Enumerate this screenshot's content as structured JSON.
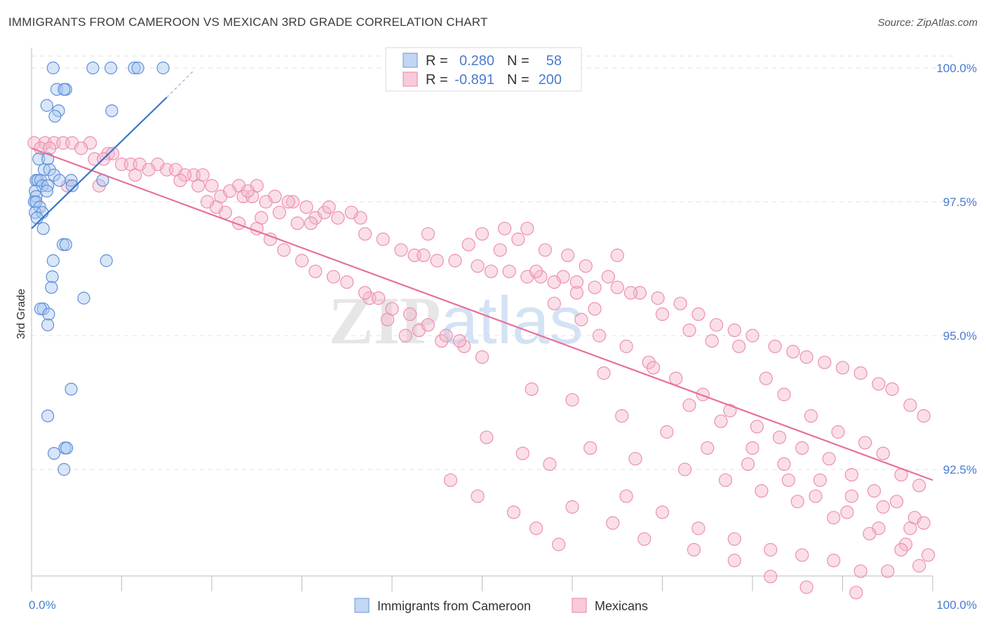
{
  "header": {
    "title": "IMMIGRANTS FROM CAMEROON VS MEXICAN 3RD GRADE CORRELATION CHART",
    "source": "Source: ZipAtlas.com"
  },
  "watermark": "ZIPatlas",
  "colors": {
    "blue": "#4a7bd0",
    "blue_fill": "#a9c7f0",
    "pink": "#e8709a",
    "pink_fill": "#f5b8cc",
    "grid": "#dddddd"
  },
  "chart_data": {
    "type": "scatter",
    "title": "IMMIGRANTS FROM CAMEROON VS MEXICAN 3RD GRADE CORRELATION CHART",
    "xlabel": "",
    "ylabel": "3rd Grade",
    "xlim": [
      0,
      100
    ],
    "ylim": [
      90.0,
      100.4
    ],
    "y_ticks": [
      {
        "value": 100.0,
        "label": "100.0%"
      },
      {
        "value": 97.5,
        "label": "97.5%"
      },
      {
        "value": 95.0,
        "label": "95.0%"
      },
      {
        "value": 92.5,
        "label": "92.5%"
      }
    ],
    "x_tick_labels": [
      {
        "value": 0,
        "label": "0.0%"
      },
      {
        "value": 100,
        "label": "100.0%"
      }
    ],
    "grid": true,
    "legend_position": "top-center",
    "stats": [
      {
        "r_label": "R =",
        "r": "0.280",
        "n_label": "N =",
        "n": "58"
      },
      {
        "r_label": "R =",
        "r": "-0.891",
        "n_label": "N =",
        "n": "200"
      }
    ],
    "series": [
      {
        "name": "Immigrants from Cameroon",
        "color": "#4a7bd0",
        "trend": {
          "x": [
            0,
            15
          ],
          "y": [
            97.0,
            99.45
          ]
        },
        "trend_extension": {
          "x": [
            15,
            18
          ],
          "y": [
            99.45,
            99.95
          ]
        },
        "points": [
          [
            2.4,
            100
          ],
          [
            6.8,
            100
          ],
          [
            8.8,
            100
          ],
          [
            11.4,
            100
          ],
          [
            11.8,
            100
          ],
          [
            14.6,
            100
          ],
          [
            2.8,
            99.6
          ],
          [
            3.8,
            99.6
          ],
          [
            3.6,
            99.6
          ],
          [
            8.9,
            99.2
          ],
          [
            1.7,
            99.3
          ],
          [
            3.0,
            99.2
          ],
          [
            2.6,
            99.1
          ],
          [
            0.8,
            98.3
          ],
          [
            1.8,
            98.3
          ],
          [
            1.4,
            98.1
          ],
          [
            2.0,
            98.1
          ],
          [
            2.5,
            98.0
          ],
          [
            0.5,
            97.9
          ],
          [
            0.7,
            97.9
          ],
          [
            1.0,
            97.9
          ],
          [
            3.1,
            97.9
          ],
          [
            4.4,
            97.9
          ],
          [
            7.9,
            97.9
          ],
          [
            1.2,
            97.8
          ],
          [
            1.8,
            97.8
          ],
          [
            4.5,
            97.8
          ],
          [
            0.4,
            97.7
          ],
          [
            0.5,
            97.6
          ],
          [
            1.7,
            97.7
          ],
          [
            0.3,
            97.5
          ],
          [
            0.5,
            97.5
          ],
          [
            0.9,
            97.4
          ],
          [
            0.4,
            97.3
          ],
          [
            1.2,
            97.3
          ],
          [
            0.6,
            97.2
          ],
          [
            1.3,
            97.0
          ],
          [
            3.5,
            96.7
          ],
          [
            3.8,
            96.7
          ],
          [
            8.3,
            96.4
          ],
          [
            2.4,
            96.4
          ],
          [
            2.3,
            96.1
          ],
          [
            2.2,
            95.9
          ],
          [
            5.8,
            95.7
          ],
          [
            1.3,
            95.5
          ],
          [
            1.0,
            95.5
          ],
          [
            1.9,
            95.4
          ],
          [
            1.8,
            95.2
          ],
          [
            4.4,
            94.0
          ],
          [
            1.8,
            93.5
          ],
          [
            3.7,
            92.9
          ],
          [
            3.9,
            92.9
          ],
          [
            2.5,
            92.8
          ],
          [
            3.6,
            92.5
          ]
        ]
      },
      {
        "name": "Mexicans",
        "color": "#e8709a",
        "trend": {
          "x": [
            0,
            100
          ],
          "y": [
            98.5,
            92.3
          ]
        },
        "points": [
          [
            0.3,
            98.6
          ],
          [
            1.5,
            98.6
          ],
          [
            2.5,
            98.6
          ],
          [
            3.5,
            98.6
          ],
          [
            4.5,
            98.6
          ],
          [
            6.5,
            98.6
          ],
          [
            1.0,
            98.5
          ],
          [
            2.0,
            98.5
          ],
          [
            5.5,
            98.5
          ],
          [
            8.5,
            98.4
          ],
          [
            9.0,
            98.4
          ],
          [
            7.0,
            98.3
          ],
          [
            8.0,
            98.3
          ],
          [
            10.0,
            98.2
          ],
          [
            11.0,
            98.2
          ],
          [
            12.0,
            98.2
          ],
          [
            14.0,
            98.2
          ],
          [
            15.0,
            98.1
          ],
          [
            13.0,
            98.1
          ],
          [
            16.0,
            98.1
          ],
          [
            18.0,
            98.0
          ],
          [
            17.0,
            98.0
          ],
          [
            19.0,
            98.0
          ],
          [
            11.5,
            98.0
          ],
          [
            4.0,
            97.8
          ],
          [
            7.5,
            97.8
          ],
          [
            16.5,
            97.9
          ],
          [
            18.5,
            97.8
          ],
          [
            20.0,
            97.8
          ],
          [
            21.0,
            97.6
          ],
          [
            23.0,
            97.8
          ],
          [
            25.0,
            97.8
          ],
          [
            22.0,
            97.7
          ],
          [
            23.5,
            97.6
          ],
          [
            24.5,
            97.6
          ],
          [
            27.0,
            97.6
          ],
          [
            29.0,
            97.5
          ],
          [
            30.5,
            97.4
          ],
          [
            31.5,
            97.2
          ],
          [
            32.5,
            97.3
          ],
          [
            34.0,
            97.2
          ],
          [
            36.5,
            97.2
          ],
          [
            25.5,
            97.2
          ],
          [
            28.5,
            97.5
          ],
          [
            24.0,
            97.7
          ],
          [
            26.0,
            97.5
          ],
          [
            27.5,
            97.3
          ],
          [
            29.5,
            97.1
          ],
          [
            31.0,
            97.1
          ],
          [
            33.0,
            97.4
          ],
          [
            35.5,
            97.3
          ],
          [
            37.0,
            96.9
          ],
          [
            39.0,
            96.8
          ],
          [
            41.0,
            96.6
          ],
          [
            42.5,
            96.5
          ],
          [
            43.5,
            96.5
          ],
          [
            45.0,
            96.4
          ],
          [
            47.0,
            96.4
          ],
          [
            49.5,
            96.3
          ],
          [
            51.0,
            96.2
          ],
          [
            53.0,
            96.2
          ],
          [
            55.0,
            96.1
          ],
          [
            56.5,
            96.1
          ],
          [
            59.0,
            96.1
          ],
          [
            60.5,
            96.0
          ],
          [
            62.5,
            95.9
          ],
          [
            65.0,
            95.9
          ],
          [
            67.5,
            95.8
          ],
          [
            69.5,
            95.7
          ],
          [
            72.0,
            95.6
          ],
          [
            74.0,
            95.4
          ],
          [
            76.0,
            95.2
          ],
          [
            78.0,
            95.1
          ],
          [
            80.0,
            95.0
          ],
          [
            82.5,
            94.8
          ],
          [
            84.5,
            94.7
          ],
          [
            86.0,
            94.6
          ],
          [
            88.0,
            94.5
          ],
          [
            90.0,
            94.4
          ],
          [
            92.0,
            94.3
          ],
          [
            94.0,
            94.1
          ],
          [
            95.5,
            94.0
          ],
          [
            97.5,
            93.7
          ],
          [
            99.0,
            93.5
          ],
          [
            52.5,
            97.0
          ],
          [
            54.0,
            96.8
          ],
          [
            57.0,
            96.6
          ],
          [
            59.5,
            96.5
          ],
          [
            61.5,
            96.3
          ],
          [
            64.0,
            96.1
          ],
          [
            66.5,
            95.8
          ],
          [
            70.0,
            95.4
          ],
          [
            73.0,
            95.1
          ],
          [
            75.5,
            94.9
          ],
          [
            78.5,
            94.8
          ],
          [
            81.5,
            94.2
          ],
          [
            83.5,
            93.9
          ],
          [
            86.5,
            93.5
          ],
          [
            89.5,
            93.2
          ],
          [
            92.5,
            93.0
          ],
          [
            94.5,
            92.8
          ],
          [
            96.5,
            92.4
          ],
          [
            98.5,
            92.2
          ],
          [
            58.0,
            95.6
          ],
          [
            61.0,
            95.3
          ],
          [
            63.0,
            95.0
          ],
          [
            66.0,
            94.8
          ],
          [
            68.5,
            94.5
          ],
          [
            71.5,
            94.2
          ],
          [
            74.5,
            93.9
          ],
          [
            77.5,
            93.6
          ],
          [
            80.5,
            93.3
          ],
          [
            83.0,
            93.1
          ],
          [
            85.5,
            92.9
          ],
          [
            88.5,
            92.7
          ],
          [
            91.0,
            92.4
          ],
          [
            93.5,
            92.1
          ],
          [
            96.0,
            91.9
          ],
          [
            98.0,
            91.6
          ],
          [
            55.5,
            94.0
          ],
          [
            60.0,
            93.8
          ],
          [
            65.5,
            93.5
          ],
          [
            70.5,
            93.2
          ],
          [
            75.0,
            92.9
          ],
          [
            79.5,
            92.6
          ],
          [
            84.0,
            92.3
          ],
          [
            87.0,
            92.0
          ],
          [
            90.5,
            91.7
          ],
          [
            94.0,
            91.4
          ],
          [
            97.0,
            91.1
          ],
          [
            99.5,
            90.9
          ],
          [
            62.0,
            92.9
          ],
          [
            67.0,
            92.7
          ],
          [
            72.5,
            92.5
          ],
          [
            77.0,
            92.3
          ],
          [
            81.0,
            92.1
          ],
          [
            85.0,
            91.9
          ],
          [
            89.0,
            91.6
          ],
          [
            93.0,
            91.3
          ],
          [
            96.5,
            91.0
          ],
          [
            98.5,
            90.7
          ],
          [
            39.5,
            95.3
          ],
          [
            41.5,
            95.0
          ],
          [
            43.0,
            95.1
          ],
          [
            45.5,
            94.9
          ],
          [
            48.0,
            94.8
          ],
          [
            50.0,
            94.6
          ],
          [
            37.5,
            95.7
          ],
          [
            40.0,
            95.5
          ],
          [
            42.0,
            95.4
          ],
          [
            44.0,
            95.2
          ],
          [
            46.0,
            95.0
          ],
          [
            47.5,
            94.9
          ],
          [
            35.0,
            96.0
          ],
          [
            37.0,
            95.8
          ],
          [
            38.5,
            95.7
          ],
          [
            31.5,
            96.2
          ],
          [
            33.5,
            96.1
          ],
          [
            30.0,
            96.4
          ],
          [
            28.0,
            96.6
          ],
          [
            26.5,
            96.8
          ],
          [
            25.0,
            97.0
          ],
          [
            23.0,
            97.1
          ],
          [
            21.5,
            97.3
          ],
          [
            20.5,
            97.4
          ],
          [
            19.5,
            97.5
          ],
          [
            60.0,
            91.8
          ],
          [
            64.5,
            91.5
          ],
          [
            68.0,
            91.2
          ],
          [
            73.5,
            91.0
          ],
          [
            78.0,
            90.8
          ],
          [
            82.0,
            90.5
          ],
          [
            86.0,
            90.3
          ],
          [
            91.5,
            90.2
          ],
          [
            95.0,
            90.6
          ],
          [
            99.0,
            91.5
          ],
          [
            46.5,
            92.3
          ],
          [
            49.5,
            92.0
          ],
          [
            53.5,
            91.7
          ],
          [
            56.0,
            91.4
          ],
          [
            58.5,
            91.1
          ],
          [
            50.5,
            93.1
          ],
          [
            54.5,
            92.8
          ],
          [
            57.5,
            92.6
          ],
          [
            63.5,
            94.3
          ],
          [
            69.0,
            94.4
          ],
          [
            73.0,
            93.7
          ],
          [
            76.5,
            93.4
          ],
          [
            80.0,
            92.9
          ],
          [
            83.5,
            92.6
          ],
          [
            87.5,
            92.3
          ],
          [
            91.0,
            92.0
          ],
          [
            94.5,
            91.8
          ],
          [
            97.5,
            91.4
          ],
          [
            66.0,
            92.0
          ],
          [
            70.0,
            91.7
          ],
          [
            74.0,
            91.4
          ],
          [
            78.0,
            91.2
          ],
          [
            82.0,
            91.0
          ],
          [
            85.5,
            90.9
          ],
          [
            89.0,
            90.8
          ],
          [
            92.0,
            90.6
          ],
          [
            65.0,
            96.5
          ],
          [
            55.0,
            97.0
          ],
          [
            50.0,
            96.9
          ],
          [
            44.0,
            96.9
          ],
          [
            48.5,
            96.7
          ],
          [
            52.0,
            96.6
          ],
          [
            56.0,
            96.2
          ],
          [
            58.0,
            96.0
          ],
          [
            60.5,
            95.8
          ],
          [
            62.5,
            95.5
          ]
        ]
      }
    ]
  },
  "bottom_legend": [
    {
      "label": "Immigrants from Cameroon"
    },
    {
      "label": "Mexicans"
    }
  ]
}
